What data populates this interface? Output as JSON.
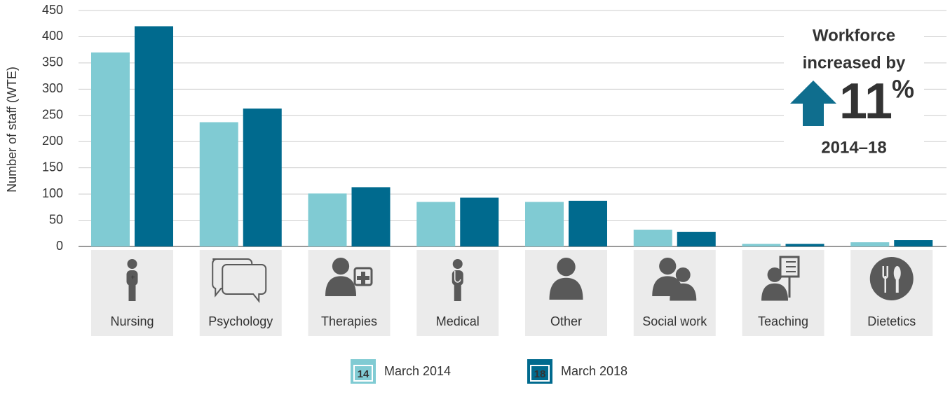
{
  "chart_data": {
    "type": "bar",
    "y_label": "Number of staff (WTE)",
    "categories": [
      "Nursing",
      "Psychology",
      "Therapies",
      "Medical",
      "Other",
      "Social work",
      "Teaching",
      "Dietetics"
    ],
    "series": [
      {
        "name": "March 2014",
        "icon_text": "14",
        "color": "#80cbd3",
        "values": [
          370,
          237,
          101,
          85,
          85,
          32,
          5,
          8
        ]
      },
      {
        "name": "March 2018",
        "icon_text": "18",
        "color": "#006a8e",
        "values": [
          420,
          263,
          113,
          93,
          87,
          28,
          5,
          12
        ]
      }
    ],
    "ylim": [
      0,
      450
    ],
    "yticks": [
      0,
      50,
      100,
      150,
      200,
      250,
      300,
      350,
      400,
      450
    ],
    "grid": true,
    "annotation": {
      "line1": "Workforce",
      "line2": "increased by",
      "number": "11",
      "unit": "%",
      "period": "2014–18",
      "color": "#0f6e8e"
    }
  }
}
